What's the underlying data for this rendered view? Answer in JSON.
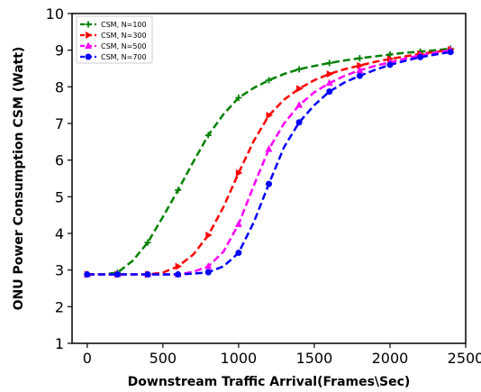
{
  "chart_data": {
    "type": "line",
    "title": "",
    "xlabel": "Downstream Traffic Arrival(Frames\\Sec)",
    "ylabel": "ONU Power Consumption CSM (Watt)",
    "xlim": [
      -100,
      2500
    ],
    "ylim": [
      1,
      10
    ],
    "x_ticks": [
      0,
      500,
      1000,
      1500,
      2000,
      2500
    ],
    "y_ticks": [
      1,
      2,
      3,
      4,
      5,
      6,
      7,
      8,
      9,
      10
    ],
    "grid": false,
    "legend_position": "upper left",
    "series": [
      {
        "name": "CSM, N=100",
        "color": "#008000",
        "marker": "plus",
        "line_style": "dashed",
        "x": [
          0,
          100,
          200,
          300,
          400,
          500,
          600,
          700,
          800,
          900,
          1000,
          1100,
          1200,
          1300,
          1400,
          1500,
          1600,
          1700,
          1800,
          1900,
          2000,
          2100,
          2200,
          2300,
          2400
        ],
        "y": [
          2.88,
          2.88,
          2.93,
          3.25,
          3.75,
          4.45,
          5.18,
          5.95,
          6.68,
          7.25,
          7.7,
          7.97,
          8.18,
          8.35,
          8.48,
          8.57,
          8.65,
          8.72,
          8.78,
          8.83,
          8.88,
          8.93,
          8.96,
          9.0,
          9.04
        ]
      },
      {
        "name": "CSM, N=300",
        "color": "#ff0000",
        "marker": "triangle-right",
        "line_style": "dashed",
        "x": [
          0,
          100,
          200,
          300,
          400,
          500,
          600,
          700,
          800,
          900,
          1000,
          1100,
          1200,
          1300,
          1400,
          1500,
          1600,
          1700,
          1800,
          1900,
          2000,
          2100,
          2200,
          2300,
          2400
        ],
        "y": [
          2.88,
          2.88,
          2.88,
          2.88,
          2.88,
          2.93,
          3.1,
          3.42,
          3.95,
          4.72,
          5.65,
          6.52,
          7.22,
          7.65,
          7.95,
          8.18,
          8.35,
          8.48,
          8.58,
          8.68,
          8.76,
          8.83,
          8.9,
          8.95,
          9.02
        ]
      },
      {
        "name": "CSM, N=500",
        "color": "#ff00ff",
        "marker": "triangle-up",
        "line_style": "dashed",
        "x": [
          0,
          100,
          200,
          300,
          400,
          500,
          600,
          700,
          800,
          900,
          1000,
          1100,
          1200,
          1300,
          1400,
          1500,
          1600,
          1700,
          1800,
          1900,
          2000,
          2100,
          2200,
          2300,
          2400
        ],
        "y": [
          2.88,
          2.88,
          2.88,
          2.88,
          2.88,
          2.88,
          2.88,
          2.95,
          3.1,
          3.5,
          4.25,
          5.3,
          6.3,
          7.0,
          7.5,
          7.85,
          8.1,
          8.3,
          8.45,
          8.57,
          8.67,
          8.77,
          8.86,
          8.93,
          9.0
        ]
      },
      {
        "name": "CSM, N=700",
        "color": "#0000ff",
        "marker": "circle",
        "line_style": "dashed",
        "x": [
          0,
          100,
          200,
          300,
          400,
          500,
          600,
          700,
          800,
          900,
          1000,
          1100,
          1200,
          1300,
          1400,
          1500,
          1600,
          1700,
          1800,
          1900,
          2000,
          2100,
          2200,
          2300,
          2400
        ],
        "y": [
          2.88,
          2.88,
          2.88,
          2.88,
          2.88,
          2.88,
          2.88,
          2.9,
          2.94,
          3.1,
          3.47,
          4.3,
          5.35,
          6.35,
          7.03,
          7.5,
          7.87,
          8.12,
          8.3,
          8.46,
          8.6,
          8.71,
          8.81,
          8.88,
          8.95
        ]
      }
    ]
  }
}
